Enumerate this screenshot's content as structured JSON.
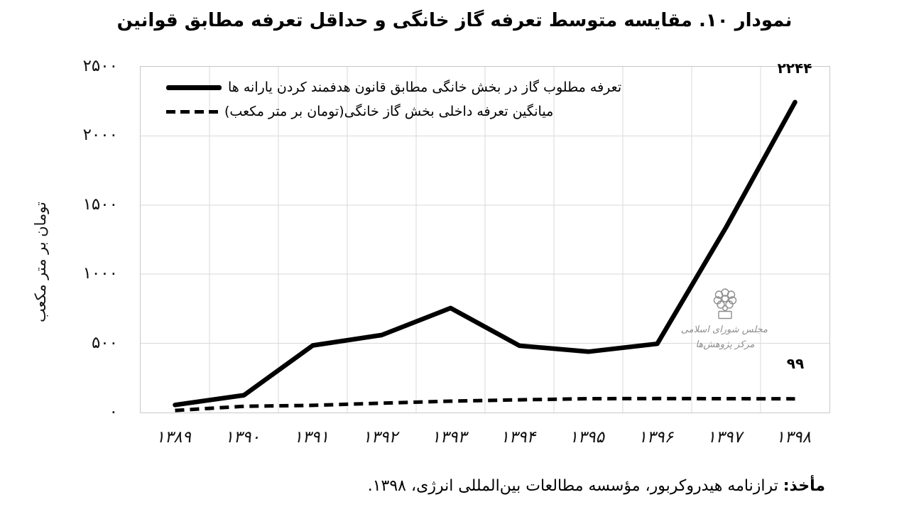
{
  "title": "نمودار ۱۰. مقایسه متوسط تعرفه گاز خانگی و حداقل تعرفه مطابق قوانین",
  "y_axis_title": "تومان بر متر مکعب",
  "legend": {
    "series1_label": "تعرفه مطلوب گاز در بخش خانگی مطابق قانون هدفمند کردن یارانه ها",
    "series2_label": "میانگین تعرفه داخلی بخش گاز خانگی(تومان بر متر مکعب)"
  },
  "annotations": {
    "max_label": "۲۲۴۴",
    "min_label": "۹۹"
  },
  "watermark": {
    "line1": "مجلس شورای اسلامی",
    "line2": "مرکز پژوهش‌ها"
  },
  "source": {
    "label": "مأخذ:",
    "text": " ترازنامه هیدروکربور، مؤسسه مطالعات بین‌المللی انرژی، ۱۳۹۸."
  },
  "colors": {
    "line": "#000000",
    "grid": "#d9d9d9",
    "plot_border": "#c8c8c8",
    "watermark": "#8e8e8e"
  },
  "chart_data": {
    "type": "line",
    "title": "نمودار ۱۰. مقایسه متوسط تعرفه گاز خانگی و حداقل تعرفه مطابق قوانین",
    "xlabel": "",
    "ylabel": "تومان بر متر مکعب",
    "ylim": [
      0,
      2500
    ],
    "y_ticks": [
      0,
      500,
      1000,
      1500,
      2000,
      2500
    ],
    "y_ticks_fa": [
      "۰",
      "۵۰۰",
      "۱۰۰۰",
      "۱۵۰۰",
      "۲۰۰۰",
      "۲۵۰۰"
    ],
    "grid": true,
    "legend_position": "top-left-inside",
    "categories": [
      1389,
      1390,
      1391,
      1392,
      1393,
      1394,
      1395,
      1396,
      1397,
      1398
    ],
    "categories_fa": [
      "۱۳۸۹",
      "۱۳۹۰",
      "۱۳۹۱",
      "۱۳۹۲",
      "۱۳۹۳",
      "۱۳۹۴",
      "۱۳۹۵",
      "۱۳۹۶",
      "۱۳۹۷",
      "۱۳۹۸"
    ],
    "series": [
      {
        "name": "تعرفه مطلوب گاز در بخش خانگی مطابق قانون هدفمند کردن یارانه ها",
        "style": "solid",
        "color": "#000000",
        "values": [
          55,
          125,
          485,
          560,
          755,
          483,
          440,
          497,
          1340,
          2244
        ]
      },
      {
        "name": "میانگین تعرفه داخلی بخش گاز خانگی(تومان بر متر مکعب)",
        "style": "dashed",
        "color": "#000000",
        "values": [
          15,
          45,
          52,
          68,
          82,
          92,
          100,
          101,
          100,
          99
        ]
      }
    ],
    "point_labels": [
      {
        "series": 0,
        "category": 1398,
        "value": 2244,
        "text": "۲۲۴۴"
      },
      {
        "series": 1,
        "category": 1398,
        "value": 99,
        "text": "۹۹"
      }
    ]
  }
}
